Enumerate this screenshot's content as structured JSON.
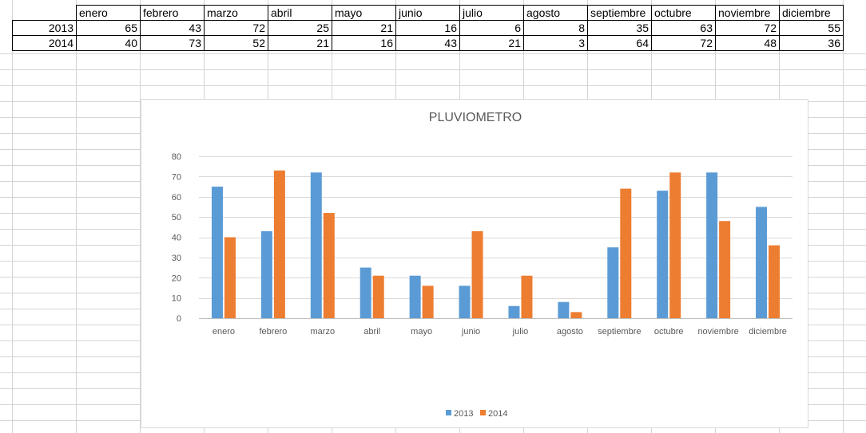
{
  "table": {
    "months": [
      "enero",
      "febrero",
      "marzo",
      "abril",
      "mayo",
      "junio",
      "julio",
      "agosto",
      "septiembre",
      "octubre",
      "noviembre",
      "diciembre"
    ],
    "rows": [
      {
        "year": "2013",
        "values": [
          65,
          43,
          72,
          25,
          21,
          16,
          6,
          8,
          35,
          63,
          72,
          55
        ]
      },
      {
        "year": "2014",
        "values": [
          40,
          73,
          52,
          21,
          16,
          43,
          21,
          3,
          64,
          72,
          48,
          36
        ]
      }
    ]
  },
  "chart_data": {
    "type": "bar",
    "title": "PLUVIOMETRO",
    "xlabel": "",
    "ylabel": "",
    "categories": [
      "enero",
      "febrero",
      "marzo",
      "abril",
      "mayo",
      "junio",
      "julio",
      "agosto",
      "septiembre",
      "octubre",
      "noviembre",
      "diciembre"
    ],
    "series": [
      {
        "name": "2013",
        "color": "#5b9bd5",
        "values": [
          65,
          43,
          72,
          25,
          21,
          16,
          6,
          8,
          35,
          63,
          72,
          55
        ]
      },
      {
        "name": "2014",
        "color": "#ed7d31",
        "values": [
          40,
          73,
          52,
          21,
          16,
          43,
          21,
          3,
          64,
          72,
          48,
          36
        ]
      }
    ],
    "ylim": [
      0,
      80
    ],
    "yticks": [
      0,
      10,
      20,
      30,
      40,
      50,
      60,
      70,
      80
    ],
    "grid": true,
    "legend_position": "bottom"
  }
}
